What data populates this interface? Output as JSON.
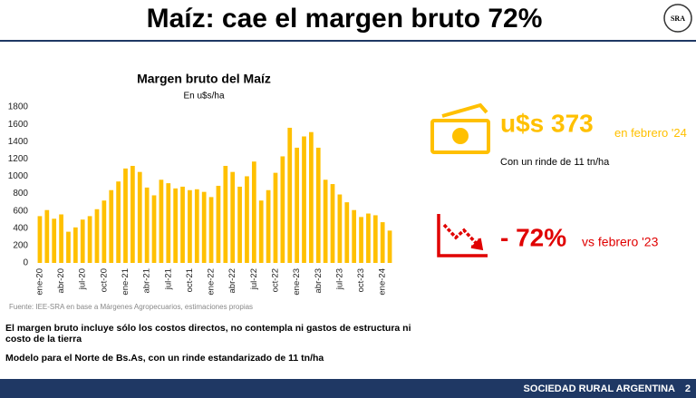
{
  "header": {
    "title": "Maíz: cae el margen bruto 72%",
    "logo": "SRA"
  },
  "chart_data": {
    "type": "bar",
    "title": "Margen bruto del Maíz",
    "subtitle": "En u$s/ha",
    "categories": [
      "ene-20",
      null,
      null,
      "abr-20",
      null,
      null,
      "jul-20",
      null,
      null,
      "oct-20",
      null,
      null,
      "ene-21",
      null,
      null,
      "abr-21",
      null,
      null,
      "jul-21",
      null,
      null,
      "oct-21",
      null,
      null,
      "ene-22",
      null,
      null,
      "abr-22",
      null,
      null,
      "jul-22",
      null,
      null,
      "oct-22",
      null,
      null,
      "ene-23",
      null,
      null,
      "abr-23",
      null,
      null,
      "jul-23",
      null,
      null,
      "oct-23",
      null,
      null,
      "ene-24",
      null
    ],
    "values": [
      540,
      610,
      510,
      560,
      360,
      410,
      500,
      540,
      620,
      720,
      840,
      940,
      1090,
      1120,
      1050,
      870,
      780,
      960,
      920,
      860,
      880,
      840,
      850,
      820,
      760,
      890,
      1120,
      1050,
      880,
      1000,
      1170,
      720,
      840,
      1040,
      1230,
      1560,
      1330,
      1460,
      1510,
      1330,
      960,
      910,
      790,
      700,
      610,
      530,
      570,
      550,
      470,
      373
    ],
    "color": "#ffc000",
    "ylim": [
      0,
      1800
    ],
    "yticks": [
      0,
      200,
      400,
      600,
      800,
      1000,
      1200,
      1400,
      1600,
      1800
    ],
    "source": "Fuente: IEE-SRA en base a Márgenes Agropecuarios, estimaciones propias"
  },
  "highlights": [
    {
      "value": "u$s 373",
      "note": "en febrero '24",
      "detail": "Con un rinde de 11 tn/ha"
    },
    {
      "value": "- 72%",
      "note": "vs febrero '23"
    }
  ],
  "notes": [
    "El margen bruto incluye sólo los costos directos, no contempla ni gastos de estructura ni costo de la tierra",
    "Modelo para el Norte de Bs.As, con un rinde estandarizado de 11 tn/ha"
  ],
  "footer": {
    "org": "SOCIEDAD RURAL ARGENTINA",
    "page": "2"
  }
}
